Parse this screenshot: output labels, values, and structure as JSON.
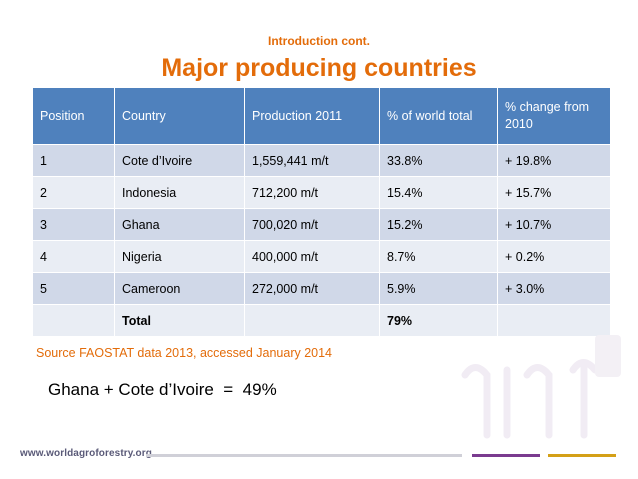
{
  "header": {
    "subtitle": "Introduction cont.",
    "title": "Major producing countries"
  },
  "table": {
    "columns": [
      "Position",
      "Country",
      "Production 2011",
      "% of world total",
      "% change from 2010"
    ],
    "rows": [
      [
        "1",
        "Cote d’Ivoire",
        "1,559,441 m/t",
        "33.8%",
        "+ 19.8%"
      ],
      [
        "2",
        "Indonesia",
        "712,200 m/t",
        "15.4%",
        "+ 15.7%"
      ],
      [
        "3",
        "Ghana",
        "700,020 m/t",
        "15.2%",
        "+ 10.7%"
      ],
      [
        "4",
        "Nigeria",
        "400,000 m/t",
        "8.7%",
        "+ 0.2%"
      ],
      [
        "5",
        "Cameroon",
        "272,000 m/t",
        "5.9%",
        "+ 3.0%"
      ]
    ],
    "total": {
      "label": "Total",
      "world_total": "79%"
    }
  },
  "source": "Source FAOSTAT data 2013, accessed January 2014",
  "summary": "Ghana + Cote d’Ivoire  =  49%",
  "footer": {
    "url": "www.worldagroforestry.org"
  },
  "colors": {
    "accent_orange": "#e36c0a",
    "header_blue": "#4f81bd",
    "row_light": "#d0d8e8",
    "row_lighter": "#e9edf4",
    "footer_purple": "#7a3b8f",
    "footer_gold": "#d4a017"
  }
}
